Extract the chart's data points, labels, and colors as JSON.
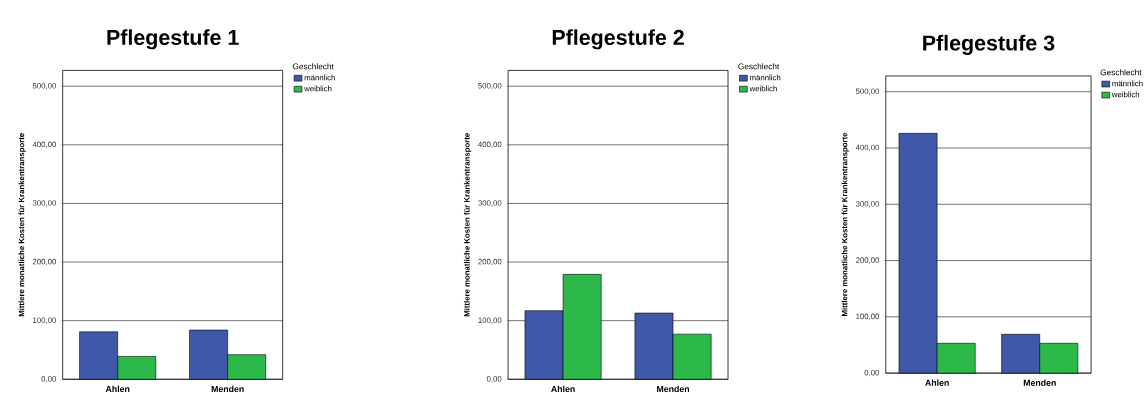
{
  "chart_data": [
    {
      "type": "bar",
      "title": "Pflegestufe 1",
      "ylabel": "Mittlere monatliche Kosten für Krankentransporte",
      "legend_title": "Geschlecht",
      "categories": [
        "Ahlen",
        "Menden"
      ],
      "series": [
        {
          "name": "männlich",
          "color": "#3f58a8",
          "values": [
            81,
            84
          ]
        },
        {
          "name": "weiblich",
          "color": "#2db84a",
          "values": [
            39,
            42
          ]
        }
      ],
      "ylim": [
        0,
        527
      ],
      "yticks": [
        {
          "value": 0,
          "label": "0,00"
        },
        {
          "value": 100,
          "label": "100,00"
        },
        {
          "value": 200,
          "label": "200,00"
        },
        {
          "value": 300,
          "label": "300,00"
        },
        {
          "value": 400,
          "label": "400,00"
        },
        {
          "value": 500,
          "label": "500,00"
        }
      ],
      "grid": "y",
      "legend": "top right"
    },
    {
      "type": "bar",
      "title": "Pflegestufe 2",
      "ylabel": "Mittlere monatliche Kosten für Krankentransporte",
      "legend_title": "Geschlecht",
      "categories": [
        "Ahlen",
        "Menden"
      ],
      "series": [
        {
          "name": "männlich",
          "color": "#3f58a8",
          "values": [
            117,
            113
          ]
        },
        {
          "name": "weiblich",
          "color": "#2db84a",
          "values": [
            179,
            77
          ]
        }
      ],
      "ylim": [
        0,
        527
      ],
      "yticks": [
        {
          "value": 0,
          "label": "0,00"
        },
        {
          "value": 100,
          "label": "100,00"
        },
        {
          "value": 200,
          "label": "200,00"
        },
        {
          "value": 300,
          "label": "300,00"
        },
        {
          "value": 400,
          "label": "400,00"
        },
        {
          "value": 500,
          "label": "500,00"
        }
      ],
      "grid": "y",
      "legend": "top right"
    },
    {
      "type": "bar",
      "title": "Pflegestufe 3",
      "ylabel": "Mittlere monatliche Kosten für Krankentransporte",
      "legend_title": "Geschlecht",
      "categories": [
        "Ahlen",
        "Menden"
      ],
      "series": [
        {
          "name": "männlich",
          "color": "#3f58a8",
          "values": [
            426,
            69
          ]
        },
        {
          "name": "weiblich",
          "color": "#2db84a",
          "values": [
            53,
            53
          ]
        }
      ],
      "ylim": [
        0,
        528
      ],
      "yticks": [
        {
          "value": 0,
          "label": "0,00"
        },
        {
          "value": 100,
          "label": "100,00"
        },
        {
          "value": 200,
          "label": "200,00"
        },
        {
          "value": 300,
          "label": "300,00"
        },
        {
          "value": 400,
          "label": "400,00"
        },
        {
          "value": 500,
          "label": "500,00"
        }
      ],
      "grid": "y",
      "legend": "top right"
    }
  ]
}
